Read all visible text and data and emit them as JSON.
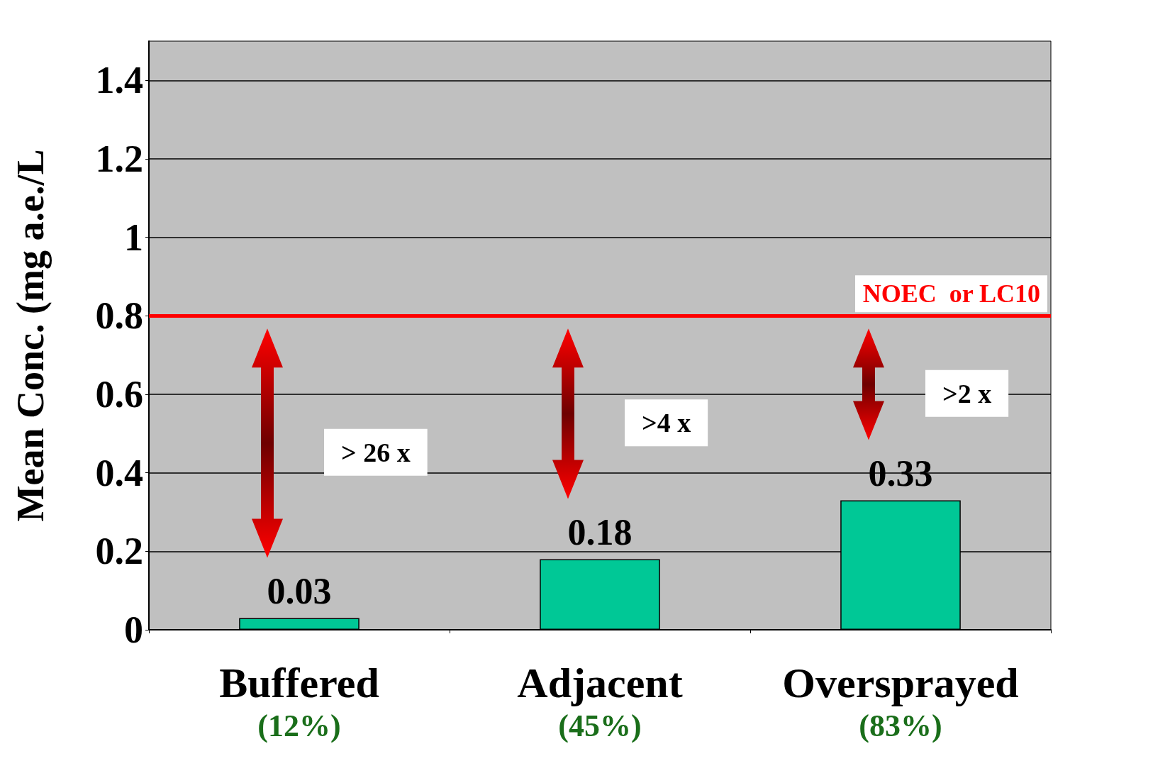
{
  "chart_data": {
    "type": "bar",
    "ylabel": "Mean Conc. (mg a.e./L",
    "categories": [
      "Buffered\n(12%)",
      "Adjacent\n(45%)",
      "Oversprayed\n(83%)"
    ],
    "values": [
      0.03,
      0.18,
      0.33
    ],
    "color": "#00c896",
    "data_labels": true,
    "ylim": [
      0,
      1.5
    ],
    "yticks": [
      0,
      0.2,
      0.4,
      0.6,
      0.8,
      1,
      1.2,
      1.4
    ],
    "grid": "y",
    "ref_lines": [
      {
        "axis": "y",
        "value": 0.8,
        "label": "NOEC  or LC10",
        "color": "#ff0000"
      }
    ],
    "annotations": [
      "> 26 x",
      ">4 x",
      ">2 x"
    ]
  }
}
